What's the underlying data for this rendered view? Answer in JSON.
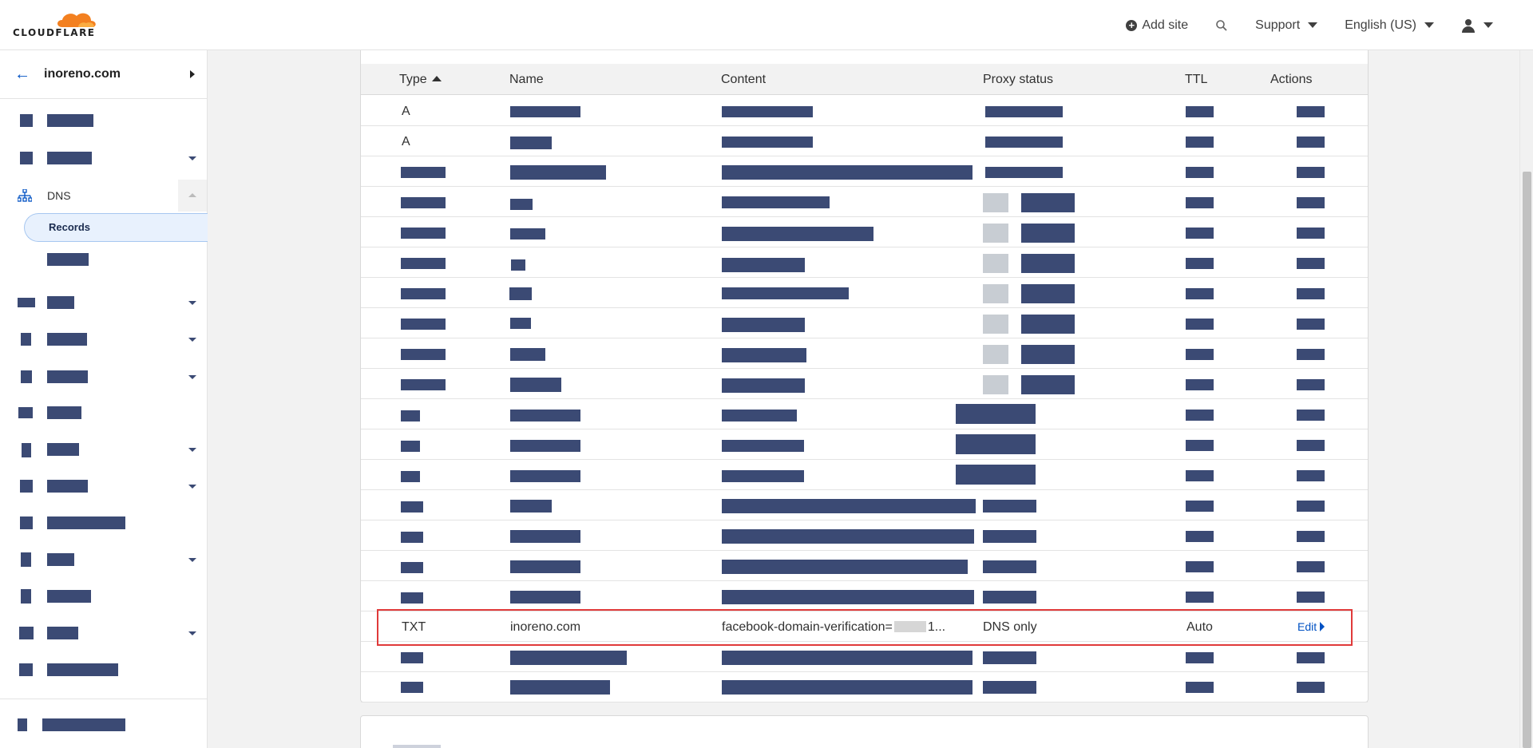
{
  "topbar": {
    "brand": "CLOUDFLARE",
    "add_site": "Add site",
    "support": "Support",
    "language": "English (US)"
  },
  "sidebar": {
    "domain": "inoreno.com",
    "dns_label": "DNS",
    "records_label": "Records"
  },
  "table": {
    "headers": {
      "type": "Type",
      "name": "Name",
      "content": "Content",
      "proxy_status": "Proxy status",
      "ttl": "TTL",
      "actions": "Actions"
    },
    "rows": [
      {
        "type": "A"
      },
      {
        "type": "A"
      },
      {},
      {},
      {},
      {},
      {},
      {},
      {},
      {},
      {},
      {},
      {},
      {},
      {},
      {},
      {},
      {
        "type": "TXT",
        "name": "inoreno.com",
        "content_prefix": "facebook-domain-verification=",
        "content_suffix": "1...",
        "proxy_status": "DNS only",
        "ttl": "Auto",
        "action": "Edit"
      },
      {},
      {}
    ]
  },
  "colors": {
    "accent": "#0051c3",
    "redaction": "#3b4a74",
    "highlight": "#e03a3a",
    "brand_orange": "#f38020"
  }
}
